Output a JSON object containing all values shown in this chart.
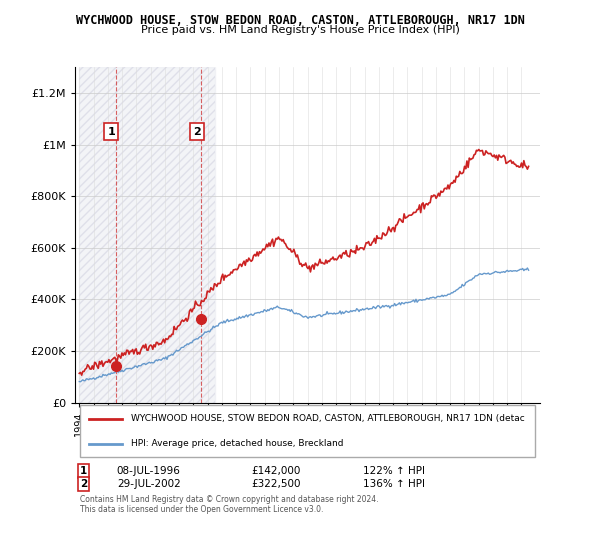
{
  "title1": "WYCHWOOD HOUSE, STOW BEDON ROAD, CASTON, ATTLEBOROUGH, NR17 1DN",
  "title2": "Price paid vs. HM Land Registry's House Price Index (HPI)",
  "legend_label1": "WYCHWOOD HOUSE, STOW BEDON ROAD, CASTON, ATTLEBOROUGH, NR17 1DN (detac",
  "legend_label2": "HPI: Average price, detached house, Breckland",
  "sale1_label": "1",
  "sale1_date": "08-JUL-1996",
  "sale1_price": 142000,
  "sale1_hpi": "122% ↑ HPI",
  "sale2_label": "2",
  "sale2_date": "29-JUL-2002",
  "sale2_price": 322500,
  "sale2_hpi": "136% ↑ HPI",
  "footer": "Contains HM Land Registry data © Crown copyright and database right 2024.\nThis data is licensed under the Open Government Licence v3.0.",
  "hpi_color": "#6699cc",
  "price_color": "#cc2222",
  "sale_marker_color": "#cc2222",
  "background_hatch_color": "#e8e8f0",
  "ylim": [
    0,
    1300000
  ],
  "yticks": [
    0,
    200000,
    400000,
    600000,
    800000,
    1000000,
    1200000
  ],
  "ytick_labels": [
    "£0",
    "£200K",
    "£400K",
    "£600K",
    "£800K",
    "£1M",
    "£1.2M"
  ],
  "xstart": 1994,
  "xend": 2026
}
